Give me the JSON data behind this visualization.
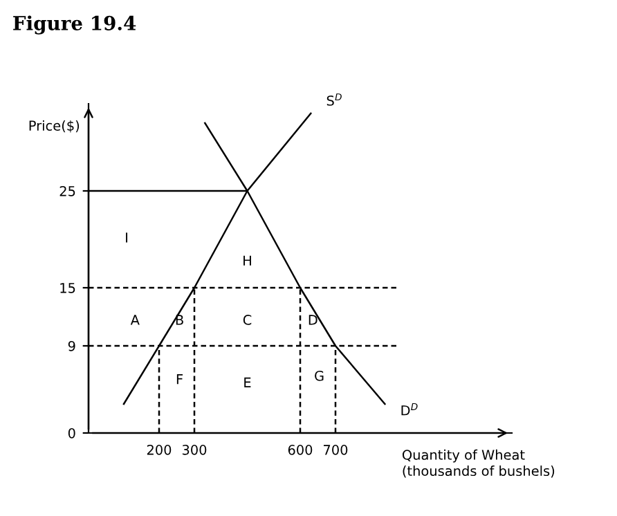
{
  "chart_data": {
    "type": "line",
    "title": "Figure 19.4",
    "xlabel": "Quantity of Wheat\n(thousands of bushels)",
    "ylabel": "Price($)",
    "xlim": [
      0,
      1200
    ],
    "ylim": [
      0,
      34
    ],
    "xticks": [
      200,
      300,
      600,
      700
    ],
    "yticks": [
      0,
      9,
      15,
      25
    ],
    "grid": false,
    "legend": false,
    "marker": "none",
    "series": [
      {
        "name": "S$^{D}$",
        "x": [
          100,
          200,
          300,
          450,
          630
        ],
        "values": [
          3,
          9,
          15,
          25,
          33
        ],
        "color": "#000000",
        "line_style": "solid"
      },
      {
        "name": "D$^{D}$",
        "x": [
          330,
          450,
          600,
          700,
          840
        ],
        "values": [
          32,
          25,
          15,
          9,
          3
        ],
        "color": "#000000",
        "line_style": "solid"
      },
      {
        "x": [
          0,
          450
        ],
        "values": [
          25,
          25
        ],
        "color": "#000000",
        "line_style": "solid"
      },
      {
        "x": [
          0,
          880
        ],
        "values": [
          15,
          15
        ],
        "color": "#000000",
        "line_style": "dashed"
      },
      {
        "x": [
          0,
          880
        ],
        "values": [
          9,
          9
        ],
        "color": "#000000",
        "line_style": "dashed"
      },
      {
        "x": [
          200,
          200
        ],
        "values": [
          0,
          9
        ],
        "color": "#000000",
        "line_style": "dashed"
      },
      {
        "x": [
          300,
          300
        ],
        "values": [
          0,
          15
        ],
        "color": "#000000",
        "line_style": "dashed"
      },
      {
        "x": [
          600,
          600
        ],
        "values": [
          0,
          15
        ],
        "color": "#000000",
        "line_style": "dashed"
      },
      {
        "x": [
          700,
          700
        ],
        "values": [
          0,
          9
        ],
        "color": "#000000",
        "line_style": "dashed"
      }
    ],
    "annotations": [
      "I",
      "H",
      "A",
      "B",
      "C",
      "D",
      "F",
      "E",
      "G"
    ]
  }
}
